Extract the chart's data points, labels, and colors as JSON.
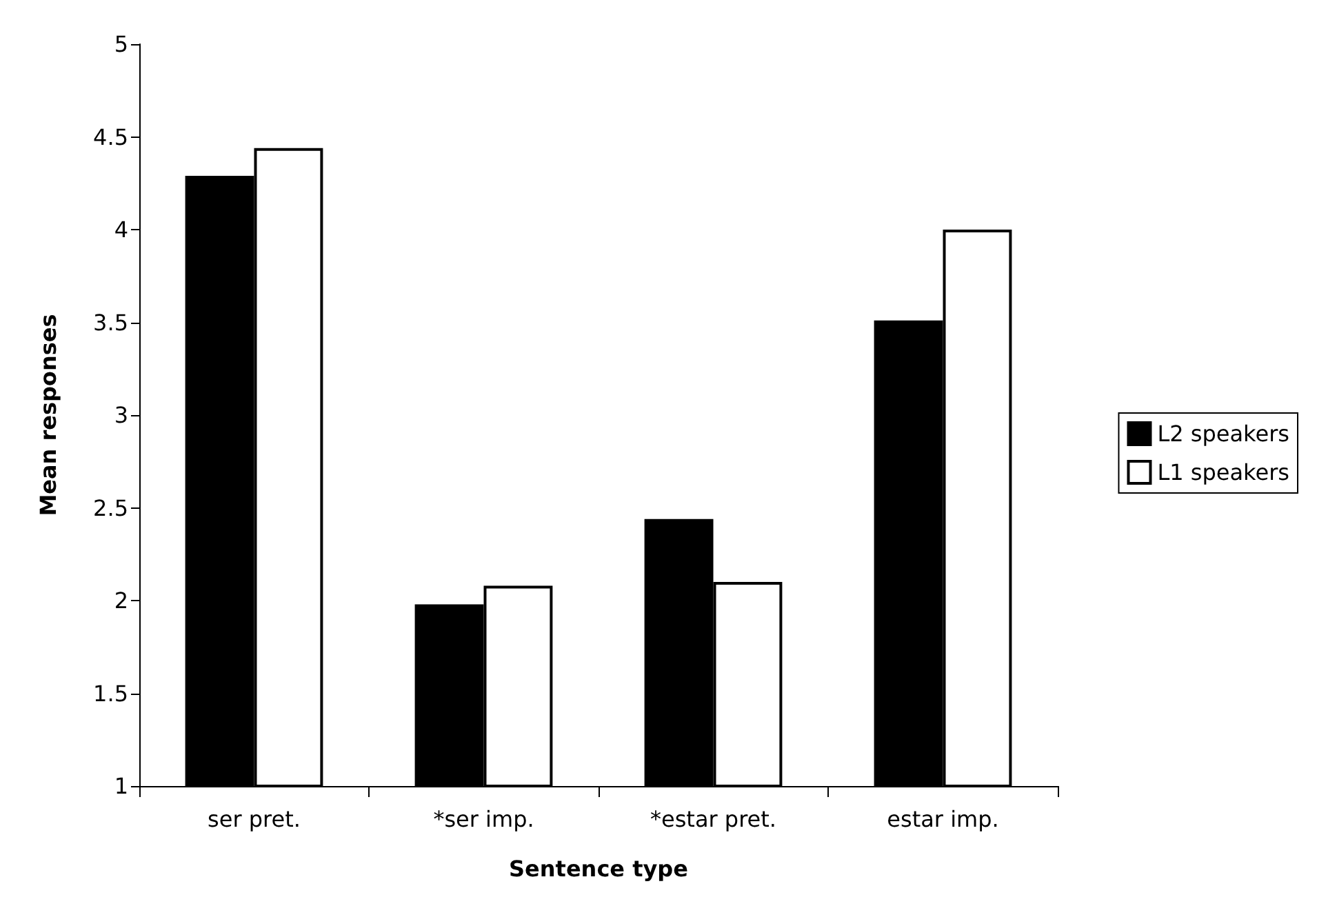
{
  "chart_data": {
    "type": "bar",
    "xlabel": "Sentence type",
    "ylabel": "Mean responses",
    "categories": [
      "ser pret.",
      "*ser imp.",
      "*estar pret.",
      "estar imp."
    ],
    "series": [
      {
        "name": "L2 speakers",
        "color": "#000000",
        "values": [
          4.29,
          1.98,
          2.44,
          3.51
        ]
      },
      {
        "name": "L1 speakers",
        "color": "#ffffff",
        "values": [
          4.44,
          2.08,
          2.1,
          4.0
        ]
      }
    ],
    "ylim": [
      1,
      5
    ],
    "yticks": [
      1,
      1.5,
      2,
      2.5,
      3,
      3.5,
      4,
      4.5,
      5
    ],
    "grid": false,
    "legend": "right"
  }
}
